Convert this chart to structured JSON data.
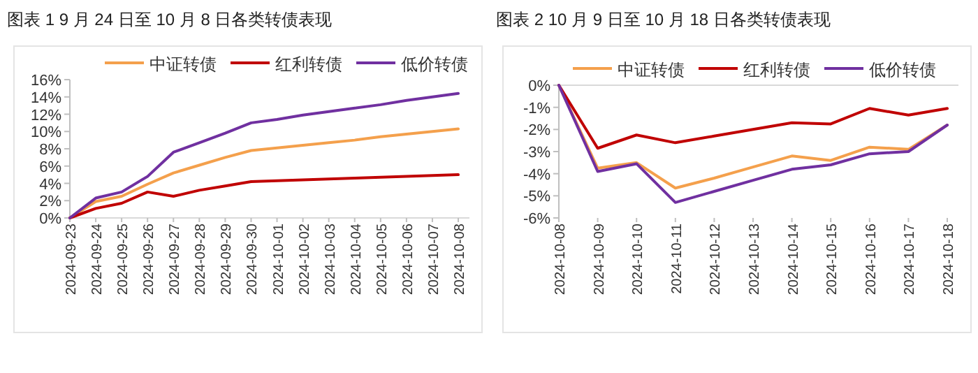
{
  "chart_data": [
    {
      "type": "line",
      "title": "图表 1  9 月 24 日至 10 月 8 日各类转债表现",
      "legend": "top",
      "marker": "none",
      "line_style": "solid",
      "grid": false,
      "categories": [
        "2024-09-23",
        "2024-09-24",
        "2024-09-25",
        "2024-09-26",
        "2024-09-27",
        "2024-09-28",
        "2024-09-29",
        "2024-09-30",
        "2024-10-01",
        "2024-10-02",
        "2024-10-03",
        "2024-10-04",
        "2024-10-05",
        "2024-10-06",
        "2024-10-07",
        "2024-10-08"
      ],
      "ylim": [
        0,
        16
      ],
      "yticks": [
        {
          "value": 0,
          "label": "0%"
        },
        {
          "value": 2,
          "label": "2%"
        },
        {
          "value": 4,
          "label": "4%"
        },
        {
          "value": 6,
          "label": "6%"
        },
        {
          "value": 8,
          "label": "8%"
        },
        {
          "value": 10,
          "label": "10%"
        },
        {
          "value": 12,
          "label": "12%"
        },
        {
          "value": 14,
          "label": "14%"
        },
        {
          "value": 16,
          "label": "16%"
        }
      ],
      "series": [
        {
          "name": "中证转债",
          "color": "#f4a04c",
          "values": [
            0,
            1.9,
            2.5,
            3.9,
            5.2,
            6.1,
            7.0,
            7.8,
            8.1,
            8.4,
            8.7,
            9.0,
            9.4,
            9.7,
            10.0,
            10.3
          ]
        },
        {
          "name": "红利转债",
          "color": "#c00000",
          "values": [
            0,
            1.1,
            1.7,
            3.0,
            2.5,
            3.2,
            3.7,
            4.2,
            4.3,
            4.4,
            4.5,
            4.6,
            4.7,
            4.8,
            4.9,
            5.0
          ]
        },
        {
          "name": "低价转债",
          "color": "#7030a0",
          "values": [
            0,
            2.3,
            3.0,
            4.8,
            7.6,
            8.7,
            9.8,
            11.0,
            11.4,
            11.9,
            12.3,
            12.7,
            13.1,
            13.6,
            14.0,
            14.4
          ]
        }
      ]
    },
    {
      "type": "line",
      "title": "图表 2  10 月 9 日至 10 月 18 日各类转债表现",
      "legend": "top",
      "marker": "none",
      "line_style": "solid",
      "grid": false,
      "categories": [
        "2024-10-08",
        "2024-10-09",
        "2024-10-10",
        "2024-10-11",
        "2024-10-12",
        "2024-10-13",
        "2024-10-14",
        "2024-10-15",
        "2024-10-16",
        "2024-10-17",
        "2024-10-18"
      ],
      "ylim": [
        -6,
        0
      ],
      "yticks": [
        {
          "value": 0,
          "label": "0%"
        },
        {
          "value": -1,
          "label": "-1%"
        },
        {
          "value": -2,
          "label": "-2%"
        },
        {
          "value": -3,
          "label": "-3%"
        },
        {
          "value": -4,
          "label": "-4%"
        },
        {
          "value": -5,
          "label": "-5%"
        },
        {
          "value": -6,
          "label": "-6%"
        }
      ],
      "series": [
        {
          "name": "中证转债",
          "color": "#f4a04c",
          "values": [
            0,
            -3.75,
            -3.5,
            -4.65,
            -4.2,
            -3.7,
            -3.2,
            -3.4,
            -2.8,
            -2.9,
            -1.8
          ]
        },
        {
          "name": "红利转债",
          "color": "#c00000",
          "values": [
            0,
            -2.85,
            -2.25,
            -2.6,
            -2.3,
            -2.0,
            -1.7,
            -1.75,
            -1.05,
            -1.35,
            -1.05
          ]
        },
        {
          "name": "低价转债",
          "color": "#7030a0",
          "values": [
            0,
            -3.9,
            -3.55,
            -5.3,
            -4.8,
            -4.3,
            -3.8,
            -3.6,
            -3.1,
            -3.0,
            -1.8
          ]
        }
      ]
    }
  ]
}
